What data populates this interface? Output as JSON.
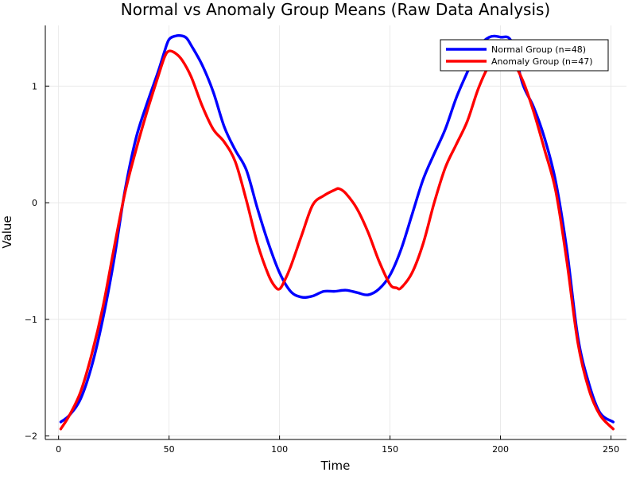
{
  "chart_data": {
    "type": "line",
    "title": "Normal vs Anomaly Group Means (Raw Data Analysis)",
    "xlabel": "Time",
    "ylabel": "Value",
    "xlim": [
      -6,
      257
    ],
    "ylim": [
      -2.03,
      1.52
    ],
    "xticks": [
      0,
      50,
      100,
      150,
      200,
      250
    ],
    "xtick_labels": [
      "0",
      "50",
      "100",
      "150",
      "200",
      "250"
    ],
    "yticks": [
      -2,
      -1,
      0,
      1
    ],
    "ytick_labels": [
      "−2",
      "−1",
      "0",
      "1"
    ],
    "grid": true,
    "legend_position": "top-right",
    "series": [
      {
        "name": "Normal Group (n=48)",
        "color": "#0000ff",
        "x": [
          1,
          5,
          10,
          15,
          20,
          25,
          30,
          35,
          40,
          45,
          48,
          50,
          53,
          56,
          58,
          60,
          65,
          70,
          75,
          80,
          85,
          90,
          95,
          100,
          105,
          110,
          115,
          120,
          125,
          130,
          135,
          140,
          145,
          150,
          155,
          160,
          165,
          170,
          175,
          180,
          185,
          190,
          195,
          200,
          205,
          210,
          215,
          220,
          225,
          230,
          235,
          240,
          245,
          251
        ],
        "y": [
          -1.88,
          -1.82,
          -1.68,
          -1.4,
          -1.0,
          -0.5,
          0.1,
          0.55,
          0.85,
          1.12,
          1.3,
          1.4,
          1.43,
          1.43,
          1.41,
          1.35,
          1.18,
          0.95,
          0.65,
          0.45,
          0.28,
          -0.05,
          -0.35,
          -0.6,
          -0.76,
          -0.81,
          -0.8,
          -0.76,
          -0.76,
          -0.75,
          -0.77,
          -0.79,
          -0.74,
          -0.62,
          -0.4,
          -0.1,
          0.2,
          0.42,
          0.63,
          0.9,
          1.12,
          1.33,
          1.42,
          1.42,
          1.38,
          1.02,
          0.82,
          0.55,
          0.18,
          -0.4,
          -1.15,
          -1.55,
          -1.8,
          -1.88
        ]
      },
      {
        "name": "Anomaly Group (n=47)",
        "color": "#ff0000",
        "x": [
          1,
          5,
          10,
          15,
          20,
          25,
          30,
          35,
          40,
          45,
          48,
          50,
          53,
          56,
          60,
          65,
          70,
          75,
          80,
          85,
          90,
          95,
          98,
          100,
          102,
          105,
          110,
          115,
          120,
          125,
          127,
          130,
          135,
          140,
          145,
          150,
          153,
          155,
          160,
          165,
          170,
          175,
          180,
          185,
          190,
          195,
          200,
          205,
          210,
          215,
          220,
          225,
          230,
          235,
          240,
          245,
          251
        ],
        "y": [
          -1.94,
          -1.82,
          -1.62,
          -1.3,
          -0.9,
          -0.4,
          0.08,
          0.45,
          0.78,
          1.08,
          1.25,
          1.3,
          1.28,
          1.22,
          1.08,
          0.83,
          0.63,
          0.52,
          0.35,
          0.02,
          -0.35,
          -0.62,
          -0.72,
          -0.74,
          -0.68,
          -0.55,
          -0.28,
          -0.02,
          0.06,
          0.11,
          0.12,
          0.08,
          -0.05,
          -0.25,
          -0.5,
          -0.7,
          -0.73,
          -0.73,
          -0.6,
          -0.35,
          0.0,
          0.3,
          0.5,
          0.7,
          0.98,
          1.18,
          1.25,
          1.22,
          1.05,
          0.78,
          0.45,
          0.1,
          -0.5,
          -1.2,
          -1.6,
          -1.82,
          -1.94
        ]
      }
    ]
  }
}
